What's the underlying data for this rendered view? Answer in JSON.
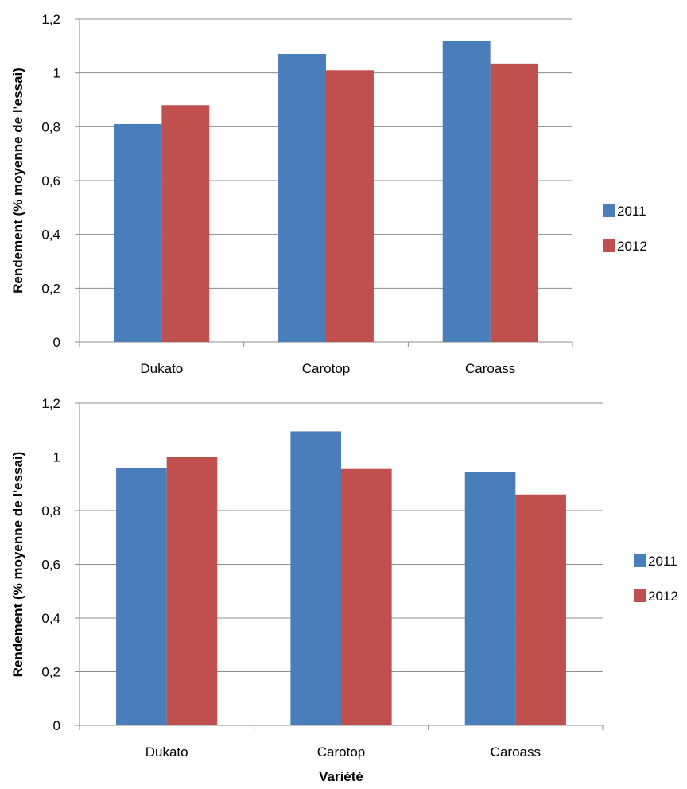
{
  "chart_data": [
    {
      "type": "bar",
      "categories": [
        "Dukato",
        "Carotop",
        "Caroass"
      ],
      "series": [
        {
          "name": "2011",
          "values": [
            0.81,
            1.07,
            1.12
          ],
          "color": "#4a7ebb"
        },
        {
          "name": "2012",
          "values": [
            0.88,
            1.01,
            1.035
          ],
          "color": "#c0504d"
        }
      ],
      "ylabel": "Rendement (% moyenne de l'essai)",
      "xlabel": "",
      "ylim": [
        0,
        1.2
      ],
      "yticks": [
        "0",
        "0,2",
        "0,4",
        "0,6",
        "0,8",
        "1",
        "1,2"
      ],
      "grid": true,
      "legend": "right"
    },
    {
      "type": "bar",
      "categories": [
        "Dukato",
        "Carotop",
        "Caroass"
      ],
      "series": [
        {
          "name": "2011",
          "values": [
            0.96,
            1.095,
            0.945
          ],
          "color": "#4a7ebb"
        },
        {
          "name": "2012",
          "values": [
            1.0,
            0.955,
            0.86
          ],
          "color": "#c0504d"
        }
      ],
      "ylabel": "Rendement (% moyenne de l'essai)",
      "xlabel": "Variété",
      "ylim": [
        0,
        1.2
      ],
      "yticks": [
        "0",
        "0,2",
        "0,4",
        "0,6",
        "0,8",
        "1",
        "1,2"
      ],
      "grid": true,
      "legend": "right"
    }
  ]
}
